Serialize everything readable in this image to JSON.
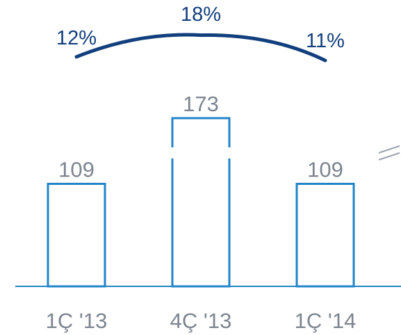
{
  "chart_data": {
    "type": "bar",
    "categories": [
      "1Ç '13",
      "4Ç '13",
      "1Ç '14"
    ],
    "values": [
      109,
      173,
      109
    ],
    "value_labels": [
      "109",
      "173",
      "109"
    ],
    "axis_break": true,
    "line_series": {
      "values": [
        12,
        18,
        11
      ],
      "labels": [
        "12%",
        "18%",
        "11%"
      ]
    },
    "colors": {
      "bar_outline": "#1f84c9",
      "line": "#123f7d",
      "labels": "#7c8590"
    },
    "ylim": [
      0,
      173
    ]
  }
}
